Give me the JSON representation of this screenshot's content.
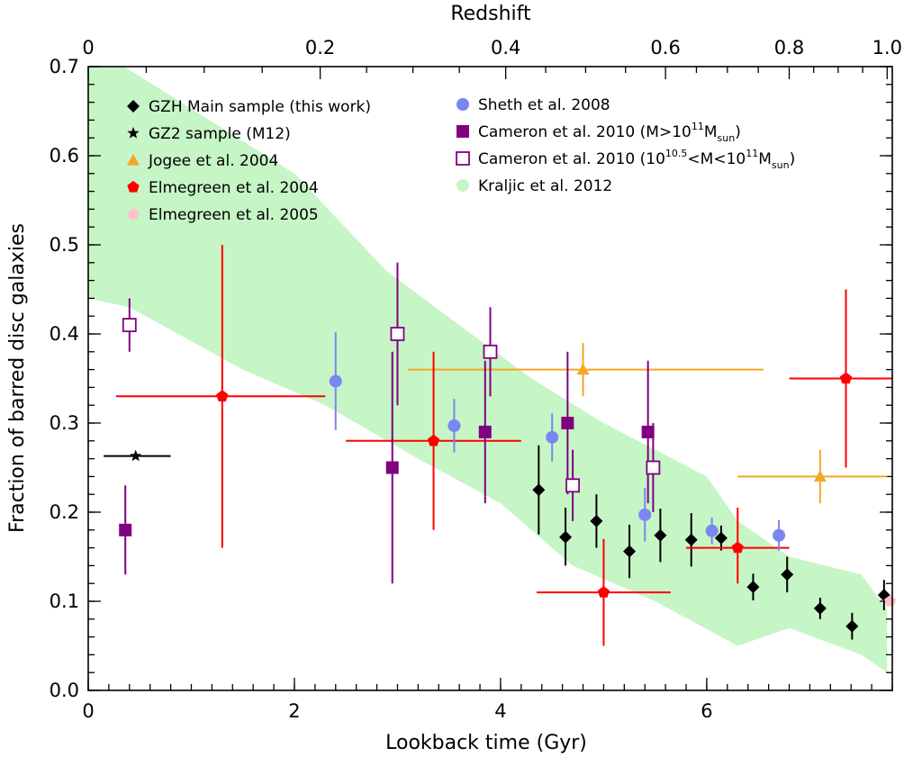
{
  "chart_data": {
    "type": "scatter",
    "xlabel": "Lookback time (Gyr)",
    "ylabel": "Fraction of barred disc galaxies",
    "top_xlabel": "Redshift",
    "xlim": [
      0,
      7.8
    ],
    "ylim": [
      0,
      0.7
    ],
    "x_ticks": [
      0,
      2,
      4,
      6
    ],
    "x_minor_step": 0.2,
    "y_ticks": [
      0.0,
      0.1,
      0.2,
      0.3,
      0.4,
      0.5,
      0.6,
      0.7
    ],
    "y_minor_step": 0.02,
    "top_ticks": [
      {
        "z": 0,
        "t": 0,
        "label": "0"
      },
      {
        "z": 0.2,
        "t": 2.25,
        "label": "0.2"
      },
      {
        "z": 0.4,
        "t": 4.05,
        "label": "0.4"
      },
      {
        "z": 0.6,
        "t": 5.6,
        "label": "0.6"
      },
      {
        "z": 0.8,
        "t": 6.8,
        "label": "0.8"
      },
      {
        "z": 1.0,
        "t": 7.75,
        "label": "1.0"
      }
    ],
    "series": [
      {
        "name": "GZH Main sample (this work)",
        "marker": "diamond",
        "color": "#000000",
        "filled": true,
        "points": [
          {
            "x": 4.37,
            "y": 0.225,
            "ylo": 0.175,
            "yhi": 0.275
          },
          {
            "x": 4.63,
            "y": 0.172,
            "ylo": 0.14,
            "yhi": 0.205
          },
          {
            "x": 4.93,
            "y": 0.19,
            "ylo": 0.16,
            "yhi": 0.22
          },
          {
            "x": 5.25,
            "y": 0.156,
            "ylo": 0.126,
            "yhi": 0.186
          },
          {
            "x": 5.55,
            "y": 0.174,
            "ylo": 0.144,
            "yhi": 0.204
          },
          {
            "x": 5.85,
            "y": 0.169,
            "ylo": 0.139,
            "yhi": 0.199
          },
          {
            "x": 6.14,
            "y": 0.171,
            "ylo": 0.157,
            "yhi": 0.185
          },
          {
            "x": 6.45,
            "y": 0.116,
            "ylo": 0.101,
            "yhi": 0.131
          },
          {
            "x": 6.78,
            "y": 0.13,
            "ylo": 0.11,
            "yhi": 0.15
          },
          {
            "x": 7.1,
            "y": 0.092,
            "ylo": 0.08,
            "yhi": 0.104
          },
          {
            "x": 7.41,
            "y": 0.072,
            "ylo": 0.057,
            "yhi": 0.087
          },
          {
            "x": 7.72,
            "y": 0.107,
            "ylo": 0.09,
            "yhi": 0.124
          }
        ]
      },
      {
        "name": "GZ2 sample (M12)",
        "marker": "star",
        "color": "#000000",
        "filled": true,
        "points": [
          {
            "x": 0.46,
            "y": 0.263,
            "xlo": 0.15,
            "xhi": 0.8
          }
        ]
      },
      {
        "name": "Jogee et al. 2004",
        "marker": "triangle",
        "color": "#f5a623",
        "filled": true,
        "points": [
          {
            "x": 4.8,
            "y": 0.36,
            "xlo": 3.1,
            "xhi": 6.55,
            "ylo": 0.33,
            "yhi": 0.39
          },
          {
            "x": 7.1,
            "y": 0.24,
            "xlo": 6.3,
            "xhi": 7.75,
            "ylo": 0.21,
            "yhi": 0.27
          }
        ]
      },
      {
        "name": "Elmegreen et al. 2004",
        "marker": "pentagon",
        "color": "#ff0000",
        "filled": true,
        "points": [
          {
            "x": 1.3,
            "y": 0.33,
            "xlo": 0.27,
            "xhi": 2.3,
            "ylo": 0.16,
            "yhi": 0.5
          },
          {
            "x": 3.35,
            "y": 0.28,
            "xlo": 2.5,
            "xhi": 4.2,
            "ylo": 0.18,
            "yhi": 0.38
          },
          {
            "x": 5.0,
            "y": 0.11,
            "xlo": 4.35,
            "xhi": 5.65,
            "ylo": 0.05,
            "yhi": 0.17
          },
          {
            "x": 6.3,
            "y": 0.16,
            "xlo": 5.8,
            "xhi": 6.8,
            "ylo": 0.12,
            "yhi": 0.205
          },
          {
            "x": 7.35,
            "y": 0.35,
            "xlo": 6.8,
            "xhi": 7.8,
            "ylo": 0.25,
            "yhi": 0.45
          }
        ]
      },
      {
        "name": "Elmegreen et al. 2005",
        "marker": "pentagon",
        "color": "#ffc0cb",
        "filled": true,
        "points": [
          {
            "x": 7.78,
            "y": 0.1
          }
        ]
      },
      {
        "name": "Sheth et al. 2008",
        "marker": "circle",
        "color": "#7b86f0",
        "filled": true,
        "points": [
          {
            "x": 2.4,
            "y": 0.347,
            "ylo": 0.292,
            "yhi": 0.402
          },
          {
            "x": 3.55,
            "y": 0.297,
            "ylo": 0.267,
            "yhi": 0.327
          },
          {
            "x": 4.5,
            "y": 0.284,
            "ylo": 0.257,
            "yhi": 0.311
          },
          {
            "x": 5.4,
            "y": 0.197,
            "ylo": 0.167,
            "yhi": 0.227
          },
          {
            "x": 6.05,
            "y": 0.179,
            "ylo": 0.164,
            "yhi": 0.194
          },
          {
            "x": 6.7,
            "y": 0.174,
            "ylo": 0.157,
            "yhi": 0.191
          }
        ]
      },
      {
        "name": "Cameron et al. 2010 (M>10^11 Msun)",
        "marker": "square",
        "color": "#800080",
        "filled": true,
        "points": [
          {
            "x": 0.36,
            "y": 0.18,
            "ylo": 0.13,
            "yhi": 0.23
          },
          {
            "x": 2.95,
            "y": 0.25,
            "ylo": 0.12,
            "yhi": 0.38
          },
          {
            "x": 3.85,
            "y": 0.29,
            "ylo": 0.21,
            "yhi": 0.37
          },
          {
            "x": 4.65,
            "y": 0.3,
            "ylo": 0.22,
            "yhi": 0.38
          },
          {
            "x": 5.43,
            "y": 0.29,
            "ylo": 0.21,
            "yhi": 0.37
          }
        ]
      },
      {
        "name": "Cameron et al. 2010 (10^10.5<M<10^11 Msun)",
        "marker": "square",
        "color": "#800080",
        "filled": false,
        "points": [
          {
            "x": 0.4,
            "y": 0.41,
            "ylo": 0.38,
            "yhi": 0.44
          },
          {
            "x": 3.0,
            "y": 0.4,
            "ylo": 0.32,
            "yhi": 0.48
          },
          {
            "x": 3.9,
            "y": 0.38,
            "ylo": 0.33,
            "yhi": 0.43
          },
          {
            "x": 4.7,
            "y": 0.23,
            "ylo": 0.19,
            "yhi": 0.27
          },
          {
            "x": 5.48,
            "y": 0.25,
            "ylo": 0.2,
            "yhi": 0.3
          }
        ]
      }
    ],
    "band": {
      "name": "Kraljic et al. 2012",
      "color": "#c6f5c6",
      "upper": [
        [
          0,
          0.7
        ],
        [
          0.35,
          0.7
        ],
        [
          2.0,
          0.58
        ],
        [
          2.9,
          0.47
        ],
        [
          3.6,
          0.41
        ],
        [
          4.3,
          0.35
        ],
        [
          5.0,
          0.3
        ],
        [
          6.0,
          0.24
        ],
        [
          6.3,
          0.19
        ],
        [
          6.8,
          0.15
        ],
        [
          7.5,
          0.13
        ],
        [
          7.75,
          0.09
        ]
      ],
      "lower": [
        [
          0,
          0.44
        ],
        [
          0.4,
          0.43
        ],
        [
          1.5,
          0.36
        ],
        [
          2.3,
          0.32
        ],
        [
          3.2,
          0.26
        ],
        [
          4.0,
          0.21
        ],
        [
          4.7,
          0.14
        ],
        [
          5.5,
          0.1
        ],
        [
          6.3,
          0.05
        ],
        [
          6.8,
          0.07
        ],
        [
          7.5,
          0.04
        ],
        [
          7.75,
          0.02
        ]
      ]
    },
    "legend": {
      "left": [
        {
          "series": 0,
          "text": "GZH Main sample (this work)"
        },
        {
          "series": 1,
          "text": "GZ2 sample (M12)"
        },
        {
          "series": 2,
          "text": "Jogee et al. 2004"
        },
        {
          "series": 3,
          "text": "Elmegreen et al. 2004"
        },
        {
          "series": 4,
          "text": "Elmegreen et al. 2005"
        }
      ],
      "right": [
        {
          "series": 5,
          "text": "Sheth et al. 2008"
        },
        {
          "series": 6,
          "text": "Cameron et al. 2010 (M>10",
          "sup": "11",
          "mid": "M",
          "sub": "sun",
          "tail": ")"
        },
        {
          "series": 7,
          "text": "Cameron et al. 2010 (10",
          "sup": "10.5",
          "mid": "<M<10",
          "sup2": "11",
          "mid2": "M",
          "sub": "sun",
          "tail": ")"
        },
        {
          "band": true,
          "text": "Kraljic et al. 2012"
        }
      ]
    }
  }
}
